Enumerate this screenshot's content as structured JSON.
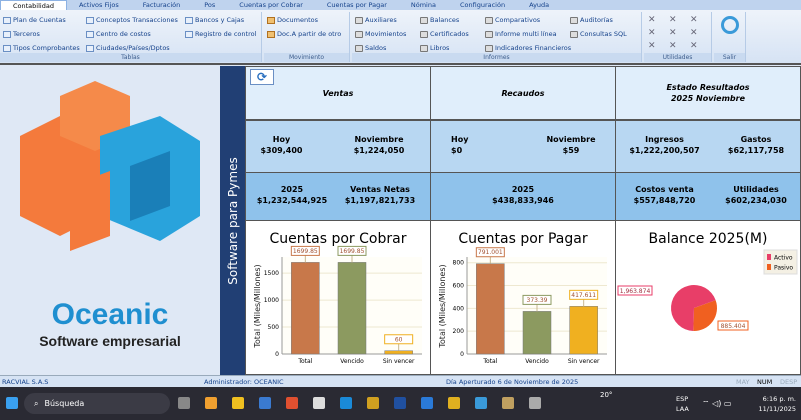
{
  "tabs": [
    "Contabilidad",
    "Activos Fijos",
    "Facturación",
    "Pos",
    "Cuentas por Cobrar",
    "Cuentas por Pagar",
    "Nómina",
    "Configuración",
    "Ayuda"
  ],
  "ribbon": {
    "tablas": {
      "label": "Tablas",
      "items": [
        "Plan de Cuentas",
        "Terceros",
        "Tipos Comprobantes",
        "Conceptos Transacciones",
        "Centro de costos",
        "Ciudades/Países/Dptos",
        "Bancos y Cajas",
        "Registro de control"
      ]
    },
    "movimiento": {
      "label": "Movimiento",
      "items": [
        "Documentos",
        "Doc.A partir de otro"
      ]
    },
    "informes": {
      "label": "Informes",
      "items": [
        "Auxiliares",
        "Movimientos",
        "Saldos",
        "Balances",
        "Certificados",
        "Libros",
        "Comparativos",
        "Informe multi línea",
        "Indicadores Financieros",
        "Auditorías",
        "Consultas SQL"
      ]
    },
    "utilidades": {
      "label": "Utilidades"
    },
    "salir": {
      "label": "Salir"
    }
  },
  "logo": {
    "name": "Oceanic",
    "tagline": "Software empresarial"
  },
  "strip": "Software para Pymes",
  "ventas": {
    "title": "Ventas",
    "hoy_label": "Hoy",
    "hoy": "$309,400",
    "mes_label": "Noviembre",
    "mes": "$1,224,050",
    "anio_label": "2025",
    "anio": "$1,232,544,925",
    "netas_label": "Ventas Netas",
    "netas": "$1,197,821,733"
  },
  "recaudos": {
    "title": "Recaudos",
    "hoy_label": "Hoy",
    "hoy": "$0",
    "mes_label": "Noviembre",
    "mes": "$59",
    "anio_label": "2025",
    "anio": "$438,833,946"
  },
  "estado": {
    "title": "Estado Resultados",
    "subtitle": "2025 Noviembre",
    "ingresos_label": "Ingresos",
    "ingresos": "$1,222,200,507",
    "gastos_label": "Gastos",
    "gastos": "$62,117,758",
    "costos_label": "Costos venta",
    "costos": "$557,848,720",
    "util_label": "Utilidades",
    "util": "$602,234,030"
  },
  "chart_data": [
    {
      "type": "bar",
      "title": "Cuentas por Cobrar",
      "ylabel": "Total (Miles/Millones)",
      "categories": [
        "Total",
        "Vencido",
        "Sin vencer"
      ],
      "values": [
        1699.85,
        1699.85,
        60
      ],
      "labels": [
        "1699.85",
        "1699.85",
        "60"
      ],
      "ylim": [
        0,
        1800
      ],
      "ticks": [
        0,
        500,
        1000,
        1500
      ],
      "colors": [
        "#c8784a",
        "#8c9a60",
        "#f0b020"
      ],
      "grid": true
    },
    {
      "type": "bar",
      "title": "Cuentas por Pagar",
      "ylabel": "Total (Miles/Millones)",
      "categories": [
        "Total",
        "Vencido",
        "Sin vencer"
      ],
      "values": [
        791.001,
        373.39,
        417.611
      ],
      "labels": [
        "791.001",
        "373.39",
        "417.611"
      ],
      "ylim": [
        0,
        850
      ],
      "ticks": [
        0,
        200,
        400,
        600,
        800
      ],
      "colors": [
        "#c8784a",
        "#8c9a60",
        "#f0b020"
      ],
      "grid": true
    },
    {
      "type": "pie",
      "title": "Balance 2025(M)",
      "categories": [
        "Activo",
        "Pasivo"
      ],
      "values": [
        1963.874,
        885.404
      ],
      "labels": [
        "1,963.874",
        "885.404"
      ],
      "colors": [
        "#e83e68",
        "#f06020"
      ],
      "legend": "top-right"
    }
  ],
  "status": {
    "company": "RACVIAL S.A.S",
    "user": "Administrador: OCEANIC",
    "day": "Día Aperturado 6 de Noviembre de 2025",
    "may": "MAY",
    "num": "NUM",
    "desp": "DESP"
  },
  "taskbar": {
    "search": "Búsqueda",
    "temp": "20°",
    "lang1": "ESP",
    "lang2": "LAA",
    "time": "6:16 p. m.",
    "date": "11/11/2025"
  }
}
